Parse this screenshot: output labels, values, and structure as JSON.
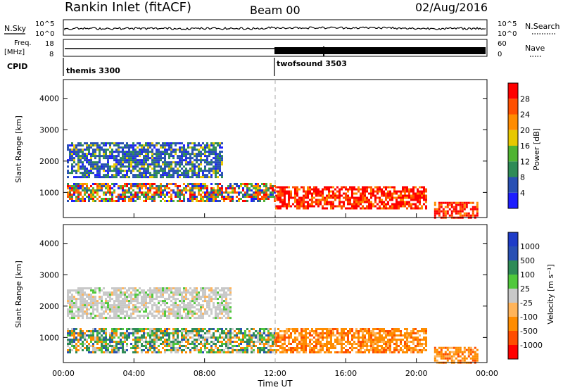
{
  "header": {
    "station": "Rankin Inlet (fitACF)",
    "beam": "Beam 00",
    "date": "02/Aug/2016"
  },
  "top_panels": {
    "nsky": {
      "label": "N.Sky",
      "right_label": "N.Search",
      "ticks_left": [
        "10^5",
        "10^0"
      ],
      "ticks_right": [
        "10^5",
        "10^0"
      ]
    },
    "freq": {
      "label": "Freq.",
      "unit": "[MHz]",
      "ticks_left": [
        "18",
        "8"
      ],
      "right_label": "Nave",
      "ticks_right": [
        "60",
        "0"
      ]
    },
    "cpid": {
      "label": "CPID",
      "modes": [
        {
          "name": "themis 3300",
          "start_hour": 0
        },
        {
          "name": "twofsound 3503",
          "start_hour": 12
        }
      ]
    }
  },
  "colors": {
    "power": [
      "#1e1eff",
      "#2850b4",
      "#2e8b57",
      "#50b432",
      "#e6c800",
      "#ff8c00",
      "#ff5000",
      "#ff0000"
    ],
    "velocity": [
      "#ff0000",
      "#ff4d00",
      "#ff8c00",
      "#ffb45a",
      "#c8c8c8",
      "#50c83c",
      "#2e8b57",
      "#2850b4",
      "#1e3cc8"
    ]
  },
  "chart_data": [
    {
      "type": "heatmap",
      "name": "Power",
      "xlabel": "",
      "ylabel": "Slant Range [km]",
      "xlim": [
        0,
        24
      ],
      "ylim": [
        200,
        4600
      ],
      "yticks": [
        1000,
        2000,
        3000,
        4000
      ],
      "colorbar": {
        "label": "Power [dB]",
        "range": [
          0,
          32
        ],
        "ticks": [
          "4",
          "8",
          "12",
          "16",
          "20",
          "24",
          "28"
        ]
      },
      "bands": [
        {
          "t0": 0.2,
          "t1": 12.0,
          "r0": 700,
          "r1": 1300,
          "level": "mixed"
        },
        {
          "t0": 0.2,
          "t1": 9.0,
          "r0": 1500,
          "r1": 2600,
          "level": "low"
        },
        {
          "t0": 12.0,
          "t1": 20.5,
          "r0": 500,
          "r1": 1200,
          "level": "high"
        },
        {
          "t0": 21.0,
          "t1": 23.5,
          "r0": 200,
          "r1": 700,
          "level": "high"
        }
      ]
    },
    {
      "type": "heatmap",
      "name": "Velocity",
      "xlabel": "Time UT",
      "ylabel": "Slant Range [km]",
      "xlim": [
        0,
        24
      ],
      "ylim": [
        200,
        4600
      ],
      "yticks": [
        1000,
        2000,
        3000,
        4000
      ],
      "xticks": [
        "00:00",
        "04:00",
        "08:00",
        "12:00",
        "16:00",
        "20:00",
        "00:00"
      ],
      "colorbar": {
        "label": "Velocity [m s⁻¹]",
        "ticks": [
          "1000",
          "500",
          "100",
          "25",
          "-25",
          "-100",
          "-500",
          "-1000"
        ]
      },
      "bands": [
        {
          "t0": 0.2,
          "t1": 12.0,
          "r0": 500,
          "r1": 1300,
          "level": "mixed"
        },
        {
          "t0": 0.2,
          "t1": 9.5,
          "r0": 1600,
          "r1": 2600,
          "level": "ground"
        },
        {
          "t0": 12.0,
          "t1": 20.5,
          "r0": 500,
          "r1": 1300,
          "level": "away"
        },
        {
          "t0": 21.0,
          "t1": 23.5,
          "r0": 200,
          "r1": 700,
          "level": "away"
        }
      ]
    }
  ]
}
